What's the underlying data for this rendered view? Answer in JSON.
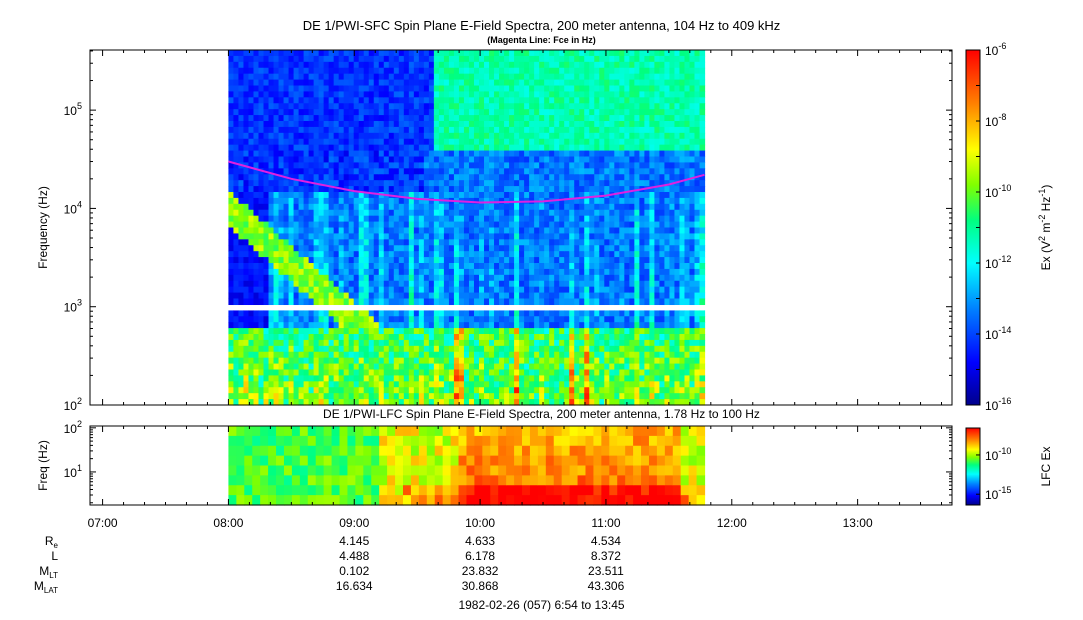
{
  "chart_data": [
    {
      "type": "heatmap",
      "title": "DE 1/PWI-SFC  Spin Plane E-Field Spectra, 200 meter antenna, 104 Hz to 409 kHz",
      "subtitle": "(Magenta Line: Fce in Hz)",
      "ylabel": "Frequency (Hz)",
      "yscale": "log",
      "ylim": [
        100,
        409000
      ],
      "yticks": [
        {
          "base": "10",
          "exp": "2"
        },
        {
          "base": "10",
          "exp": "3"
        },
        {
          "base": "10",
          "exp": "4"
        },
        {
          "base": "10",
          "exp": "5"
        }
      ],
      "data_coverage_ut": [
        "08:00",
        "11:47"
      ],
      "data_gap_hz": [
        920,
        1020
      ],
      "colorbar": {
        "label": "Ex (V2 m-2 Hz-1)",
        "label_parts": {
          "pre": "Ex (V",
          "sup1": "2",
          "mid": " m",
          "sup2": "-2",
          "mid2": " Hz",
          "sup3": "-1",
          "post": ")"
        },
        "scale": "log",
        "range": [
          1e-16,
          1e-06
        ],
        "ticks": [
          {
            "base": "10",
            "exp": "-6"
          },
          {
            "base": "10",
            "exp": "-8"
          },
          {
            "base": "10",
            "exp": "-10"
          },
          {
            "base": "10",
            "exp": "-12"
          },
          {
            "base": "10",
            "exp": "-14"
          },
          {
            "base": "10",
            "exp": "-16"
          }
        ],
        "colors": [
          "#00008b",
          "#0000ff",
          "#0080ff",
          "#00ffff",
          "#00ff80",
          "#80ff00",
          "#ffff00",
          "#ff8000",
          "#ff0000"
        ]
      },
      "series": [
        {
          "name": "Fce",
          "color": "#e020e0",
          "points": [
            [
              "08:00",
              30000
            ],
            [
              "08:30",
              20000
            ],
            [
              "09:00",
              15000
            ],
            [
              "09:30",
              12500
            ],
            [
              "10:00",
              11500
            ],
            [
              "10:30",
              11800
            ],
            [
              "11:00",
              13500
            ],
            [
              "11:30",
              17500
            ],
            [
              "11:47",
              22000
            ]
          ]
        }
      ]
    },
    {
      "type": "heatmap",
      "title": "DE 1/PWI-LFC  Spin Plane E-Field Spectra, 200 meter antenna, 1.78 Hz to 100 Hz",
      "ylabel": "Freq (Hz)",
      "yscale": "log",
      "ylim": [
        1.78,
        110
      ],
      "yticks": [
        {
          "base": "10",
          "exp": "1"
        },
        {
          "base": "10",
          "exp": "2"
        }
      ],
      "data_coverage_ut": [
        "08:00",
        "11:47"
      ],
      "colorbar": {
        "label": "LFC Ex",
        "scale": "log",
        "ticks": [
          {
            "base": "10",
            "exp": "-10"
          },
          {
            "base": "10",
            "exp": "-15"
          }
        ]
      }
    }
  ],
  "x_axis": {
    "ticks": [
      "07:00",
      "08:00",
      "09:00",
      "10:00",
      "11:00",
      "12:00",
      "13:00"
    ],
    "range": [
      "06:54",
      "13:45"
    ]
  },
  "ephemeris": {
    "rows": [
      {
        "label": "R",
        "sub": "e",
        "values": [
          "4.145",
          "4.633",
          "4.534"
        ]
      },
      {
        "label": "L",
        "sub": "",
        "values": [
          "4.488",
          "6.178",
          "8.372"
        ]
      },
      {
        "label": "M",
        "sub": "LT",
        "values": [
          "0.102",
          "23.832",
          "23.511"
        ]
      },
      {
        "label": "M",
        "sub": "LAT",
        "values": [
          "16.634",
          "30.868",
          "43.306"
        ]
      }
    ],
    "times": [
      "09:00",
      "10:00",
      "11:00"
    ]
  },
  "footer": "1982-02-26 (057) 6:54 to 13:45"
}
